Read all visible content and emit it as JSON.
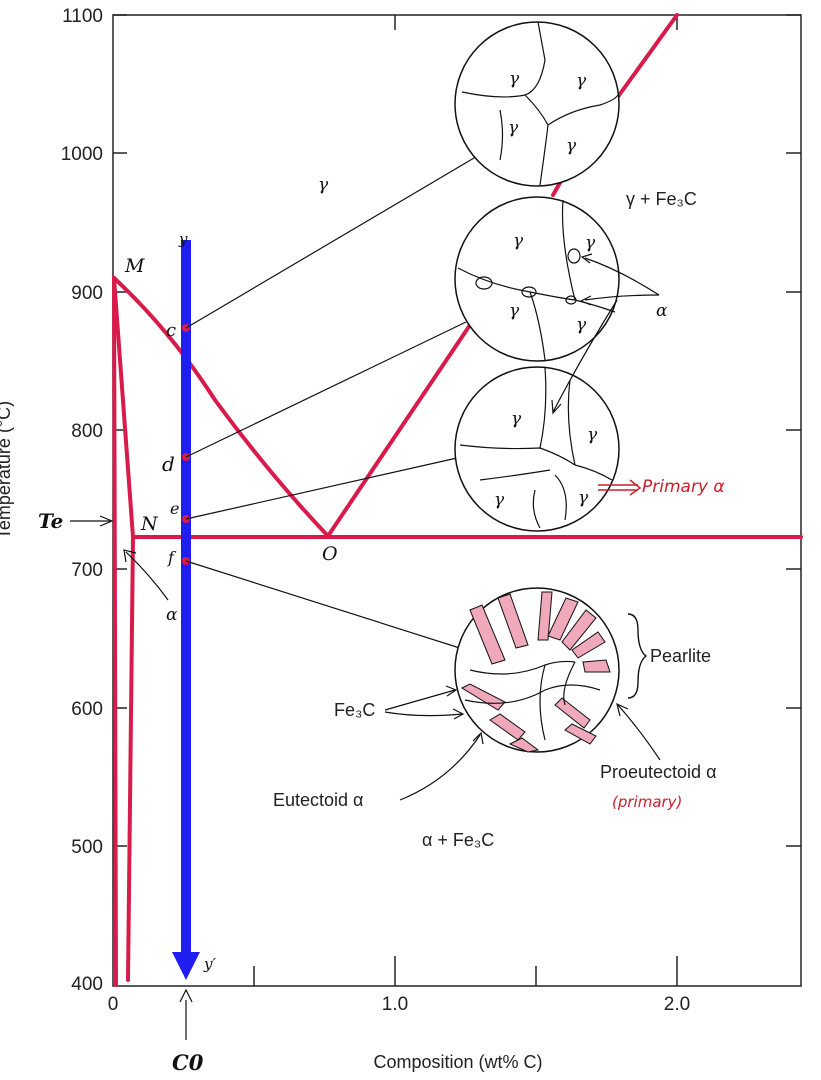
{
  "axes": {
    "ylabel": "Temperature (°C)",
    "xlabel": "Composition (wt% C)",
    "yticks": [
      "1100",
      "1000",
      "900",
      "800",
      "700",
      "600",
      "500",
      "400"
    ],
    "xticks": [
      "0",
      "1.0",
      "2.0"
    ]
  },
  "points": {
    "M": "M",
    "N": "N",
    "O": "O",
    "c": "c",
    "d": "d",
    "e": "e",
    "f": "f",
    "y": "y",
    "yprime": "y′",
    "Te": "Te",
    "C0": "C0"
  },
  "regions": {
    "gamma": "γ",
    "gamma_fe3c": "γ + Fe₃C",
    "alpha": "α",
    "alpha_fe3c": "α + Fe₃C"
  },
  "labels": {
    "alpha_right": "α",
    "pearlite": "Pearlite",
    "fe3c": "Fe₃C",
    "eutectoid_alpha": "Eutectoid α",
    "proeutectoid_alpha": "Proeutectoid α",
    "primary_note": "(primary)",
    "primary_alpha_note": "Primary α"
  },
  "microstructures": {
    "grain_label": "γ"
  },
  "colors": {
    "phase_line": "#d81b4a",
    "cooling_arrow": "#1e1ef0",
    "lamella": "#f0a8bb",
    "handwriting": "#cc1f2a"
  }
}
